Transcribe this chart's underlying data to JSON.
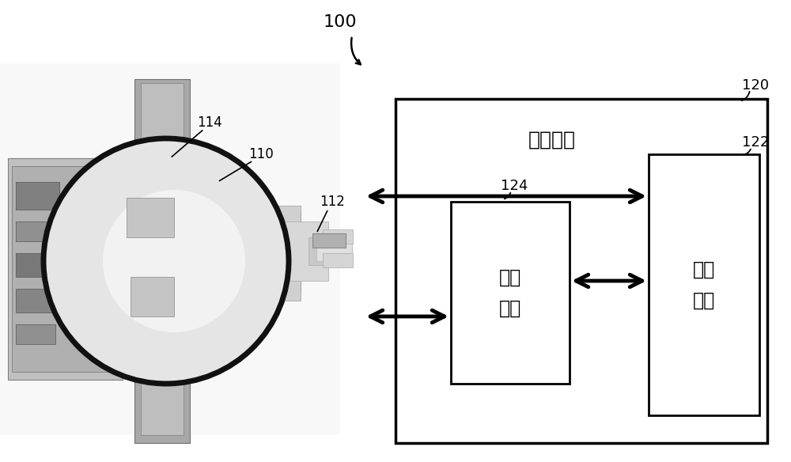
{
  "bg_color": "#ffffff",
  "label_100": "100",
  "label_120": "120",
  "label_122": "122",
  "label_124": "124",
  "label_110": "110",
  "label_112": "112",
  "label_114": "114",
  "control_device_text": "控制设备",
  "measure_device_text": "测量\n装置",
  "regulate_device_text": "调控\n装置",
  "font_size_label": 12,
  "font_size_chinese_title": 18,
  "font_size_chinese_box": 17,
  "font_size_number": 14
}
